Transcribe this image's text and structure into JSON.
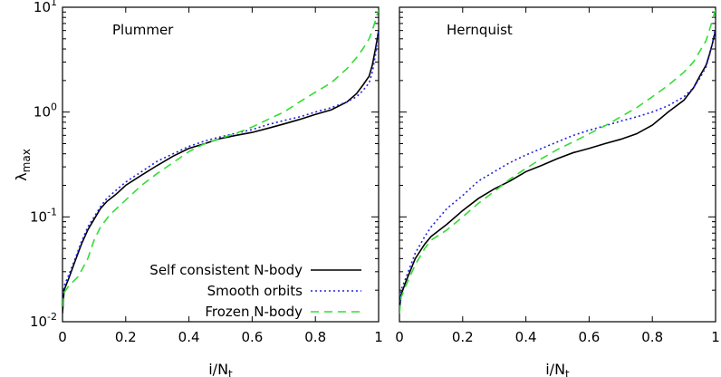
{
  "chart_data": [
    {
      "type": "line",
      "title": "Plummer",
      "xlabel": "i/N",
      "xlabel_sub": "t",
      "ylabel": "λ",
      "ylabel_sub": "max",
      "xlim": [
        0,
        1
      ],
      "ylim": [
        0.01,
        10
      ],
      "yscale": "log",
      "x_ticks": [
        0,
        0.2,
        0.4,
        0.6,
        0.8,
        1
      ],
      "x_tick_labels": [
        "0",
        "0.2",
        "0.4",
        "0.6",
        "0.8",
        "1"
      ],
      "y_ticks": [
        0.01,
        0.1,
        1,
        10
      ],
      "y_tick_base": "10",
      "y_tick_exponents": [
        "-2",
        "-1",
        "0",
        "1"
      ],
      "legend": "bottom-right",
      "series": [
        {
          "name": "Self consistent N-body",
          "color": "#000000",
          "style": "solid",
          "x": [
            0,
            0.005,
            0.02,
            0.04,
            0.06,
            0.08,
            0.1,
            0.12,
            0.14,
            0.17,
            0.2,
            0.25,
            0.3,
            0.35,
            0.4,
            0.45,
            0.5,
            0.55,
            0.6,
            0.65,
            0.7,
            0.75,
            0.8,
            0.85,
            0.9,
            0.93,
            0.95,
            0.97,
            0.98,
            0.99,
            1.0
          ],
          "y": [
            0.012,
            0.02,
            0.026,
            0.038,
            0.055,
            0.075,
            0.095,
            0.12,
            0.14,
            0.165,
            0.2,
            0.25,
            0.31,
            0.38,
            0.45,
            0.5,
            0.56,
            0.6,
            0.64,
            0.7,
            0.77,
            0.85,
            0.95,
            1.05,
            1.25,
            1.5,
            1.8,
            2.2,
            2.8,
            4.0,
            6.0
          ]
        },
        {
          "name": "Smooth orbits",
          "color": "#2222dd",
          "style": "dotted",
          "x": [
            0,
            0.005,
            0.02,
            0.04,
            0.06,
            0.08,
            0.1,
            0.12,
            0.14,
            0.17,
            0.2,
            0.25,
            0.3,
            0.35,
            0.4,
            0.45,
            0.5,
            0.55,
            0.6,
            0.65,
            0.7,
            0.75,
            0.8,
            0.85,
            0.9,
            0.93,
            0.95,
            0.97,
            0.98,
            0.99,
            1.0
          ],
          "y": [
            0.015,
            0.022,
            0.028,
            0.04,
            0.058,
            0.08,
            0.1,
            0.125,
            0.15,
            0.18,
            0.215,
            0.27,
            0.34,
            0.4,
            0.47,
            0.53,
            0.58,
            0.63,
            0.68,
            0.76,
            0.83,
            0.9,
            1.0,
            1.1,
            1.25,
            1.4,
            1.6,
            1.9,
            2.4,
            3.5,
            6.0
          ]
        },
        {
          "name": "Frozen N-body",
          "color": "#33dd33",
          "style": "dashed",
          "x": [
            0,
            0.005,
            0.02,
            0.05,
            0.08,
            0.1,
            0.12,
            0.15,
            0.2,
            0.25,
            0.3,
            0.35,
            0.4,
            0.45,
            0.5,
            0.55,
            0.6,
            0.65,
            0.7,
            0.75,
            0.8,
            0.85,
            0.9,
            0.93,
            0.95,
            0.97,
            0.98,
            0.99,
            1.0
          ],
          "y": [
            0.014,
            0.019,
            0.022,
            0.027,
            0.04,
            0.06,
            0.08,
            0.105,
            0.145,
            0.2,
            0.26,
            0.33,
            0.42,
            0.5,
            0.56,
            0.63,
            0.72,
            0.85,
            1.0,
            1.25,
            1.55,
            1.9,
            2.6,
            3.3,
            4.0,
            5.0,
            6.0,
            7.5,
            9.5
          ]
        }
      ]
    },
    {
      "type": "line",
      "title": "Hernquist",
      "xlabel": "i/N",
      "xlabel_sub": "t",
      "xlim": [
        0,
        1
      ],
      "ylim": [
        0.01,
        10
      ],
      "yscale": "log",
      "x_ticks": [
        0,
        0.2,
        0.4,
        0.6,
        0.8,
        1
      ],
      "x_tick_labels": [
        "0",
        "0.2",
        "0.4",
        "0.6",
        "0.8",
        "1"
      ],
      "series": [
        {
          "name": "Self consistent N-body",
          "color": "#000000",
          "style": "solid",
          "x": [
            0,
            0.005,
            0.02,
            0.05,
            0.08,
            0.1,
            0.15,
            0.2,
            0.25,
            0.3,
            0.35,
            0.4,
            0.45,
            0.5,
            0.55,
            0.6,
            0.65,
            0.7,
            0.75,
            0.8,
            0.85,
            0.9,
            0.93,
            0.95,
            0.97,
            0.98,
            0.99,
            1.0
          ],
          "y": [
            0.013,
            0.018,
            0.024,
            0.04,
            0.055,
            0.065,
            0.085,
            0.115,
            0.15,
            0.185,
            0.22,
            0.27,
            0.31,
            0.36,
            0.41,
            0.45,
            0.5,
            0.55,
            0.62,
            0.75,
            1.0,
            1.3,
            1.7,
            2.2,
            2.8,
            3.5,
            4.5,
            6.0
          ]
        },
        {
          "name": "Smooth orbits",
          "color": "#2222dd",
          "style": "dotted",
          "x": [
            0,
            0.005,
            0.02,
            0.05,
            0.08,
            0.1,
            0.15,
            0.2,
            0.25,
            0.3,
            0.35,
            0.4,
            0.45,
            0.5,
            0.55,
            0.6,
            0.65,
            0.7,
            0.75,
            0.8,
            0.85,
            0.9,
            0.93,
            0.95,
            0.97,
            0.98,
            0.99,
            1.0
          ],
          "y": [
            0.014,
            0.02,
            0.026,
            0.045,
            0.065,
            0.08,
            0.12,
            0.16,
            0.22,
            0.27,
            0.33,
            0.39,
            0.45,
            0.52,
            0.6,
            0.67,
            0.74,
            0.82,
            0.9,
            1.0,
            1.15,
            1.4,
            1.7,
            2.1,
            2.7,
            3.4,
            4.5,
            6.5
          ]
        },
        {
          "name": "Frozen N-body",
          "color": "#33dd33",
          "style": "dashed",
          "x": [
            0,
            0.005,
            0.02,
            0.05,
            0.08,
            0.1,
            0.15,
            0.2,
            0.25,
            0.3,
            0.35,
            0.4,
            0.45,
            0.5,
            0.55,
            0.6,
            0.65,
            0.7,
            0.75,
            0.8,
            0.85,
            0.9,
            0.93,
            0.95,
            0.97,
            0.98,
            0.99,
            1.0
          ],
          "y": [
            0.012,
            0.017,
            0.022,
            0.035,
            0.05,
            0.06,
            0.075,
            0.1,
            0.135,
            0.175,
            0.23,
            0.29,
            0.36,
            0.44,
            0.52,
            0.62,
            0.74,
            0.9,
            1.1,
            1.4,
            1.8,
            2.4,
            3.0,
            3.8,
            4.8,
            6.0,
            7.5,
            9.5
          ]
        }
      ]
    }
  ]
}
